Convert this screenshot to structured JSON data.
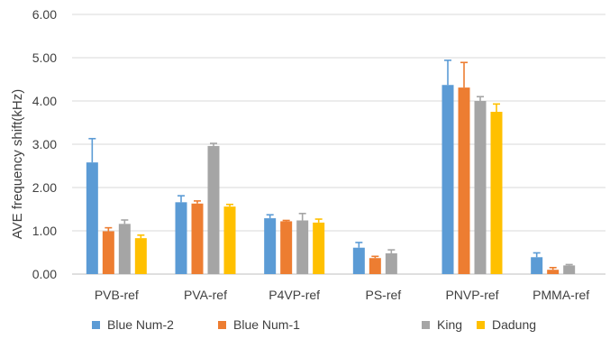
{
  "chart_data": {
    "type": "bar",
    "title": "",
    "xlabel": "",
    "ylabel": "AVE frequency shift(kHz)",
    "ylim": [
      0,
      6
    ],
    "yticks": [
      "0.00",
      "1.00",
      "2.00",
      "3.00",
      "4.00",
      "5.00",
      "6.00"
    ],
    "grid": true,
    "legend_position": "bottom",
    "categories": [
      "PVB-ref",
      "PVA-ref",
      "P4VP-ref",
      "PS-ref",
      "PNVP-ref",
      "PMMA-ref"
    ],
    "series": [
      {
        "name": "Blue Num-2",
        "color": "#5b9bd5",
        "values": [
          2.58,
          1.66,
          1.29,
          0.61,
          4.37,
          0.39
        ],
        "errors": [
          0.55,
          0.15,
          0.08,
          0.12,
          0.57,
          0.1
        ]
      },
      {
        "name": "Blue Num-1",
        "color": "#ed7d31",
        "values": [
          0.99,
          1.63,
          1.22,
          0.37,
          4.31,
          0.1
        ],
        "errors": [
          0.08,
          0.06,
          0.02,
          0.04,
          0.58,
          0.05
        ]
      },
      {
        "name": "King",
        "color": "#a5a5a5",
        "values": [
          1.16,
          2.96,
          1.24,
          0.48,
          4.0,
          0.2
        ],
        "errors": [
          0.09,
          0.06,
          0.16,
          0.08,
          0.1,
          0.02
        ]
      },
      {
        "name": "Dadung",
        "color": "#ffc000",
        "values": [
          0.83,
          1.56,
          1.19,
          null,
          3.75,
          null
        ],
        "errors": [
          0.07,
          0.05,
          0.08,
          null,
          0.18,
          null
        ]
      }
    ]
  }
}
